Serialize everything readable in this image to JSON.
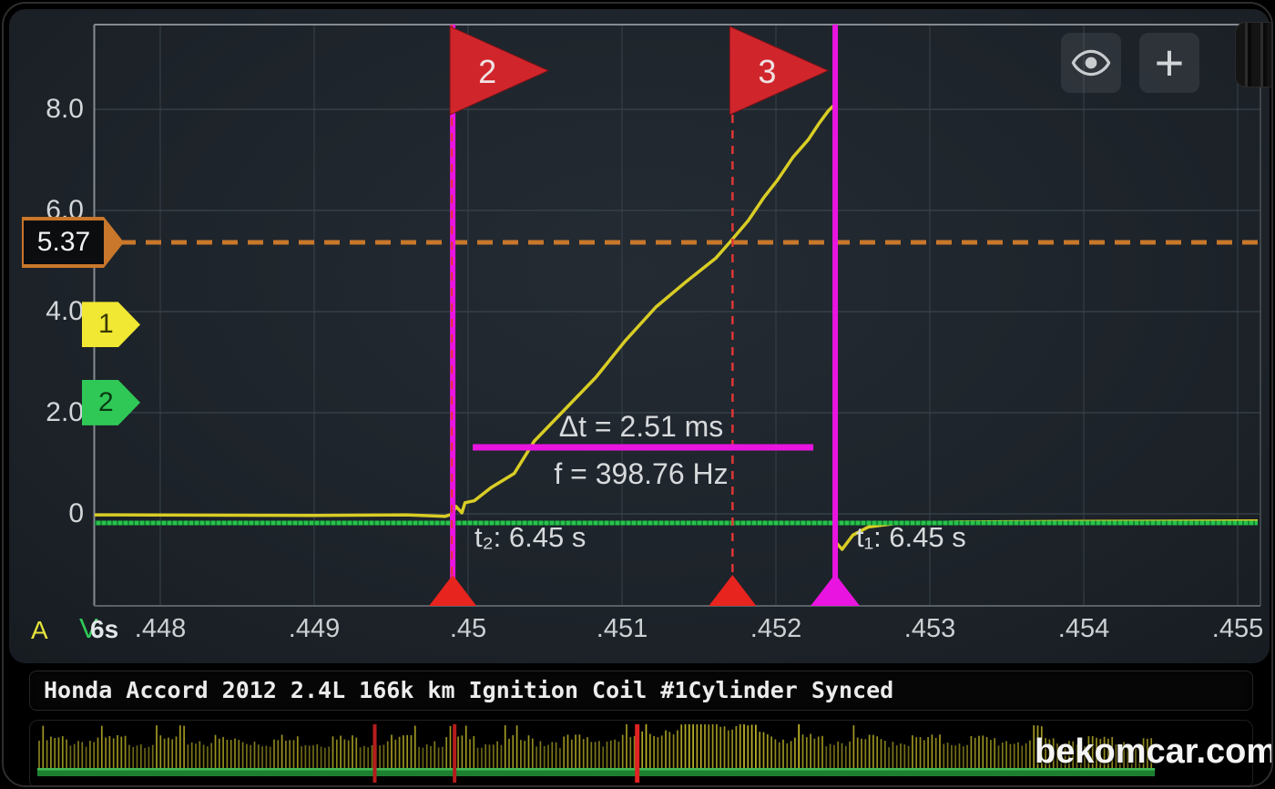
{
  "title_bar": {
    "text": "Honda Accord 2012 2.4L 166k km Ignition Coil #1Cylinder Synced"
  },
  "buttons": {
    "add_label": "+"
  },
  "axis_corner": {
    "channel": "A",
    "overlay": "V",
    "timebase": "6s"
  },
  "measurements": {
    "dt": "Δt = 2.51 ms",
    "f": "f = 398.76 Hz",
    "t2": "t₂: 6.45 s",
    "t1": "t₁: 6.45 s"
  },
  "ref_marker": {
    "label": "5.37",
    "value": 5.37
  },
  "channel_markers": [
    {
      "label": "1",
      "value": 3.74,
      "color": "#f0e832",
      "text_color": "#3a3a08"
    },
    {
      "label": "2",
      "value": 2.2,
      "color": "#2fc857",
      "text_color": "#083b14"
    }
  ],
  "overview": {
    "watermark": "bekomcar.com",
    "cursor_marks_pct": [
      27.9,
      34.5,
      49.6
    ],
    "data_extent_pct": 92.4
  },
  "colors": {
    "magenta": "#ea14e0",
    "flag_red": "#d1252c",
    "dash_red": "#e03636",
    "ref_orange": "#c8772b",
    "trace_yellow": "#d9cd25",
    "trace_green": "#27c24c"
  },
  "chart_data": {
    "type": "line",
    "x_unit": "s",
    "x_range": [
      0.447574,
      0.45513
    ],
    "y_range": [
      -1.77,
      9.55
    ],
    "grid": true,
    "x_ticks": {
      "labels": [
        ".448",
        ".449",
        ".45",
        ".451",
        ".452",
        ".453",
        ".454",
        ".455"
      ],
      "values": [
        0.448,
        0.449,
        0.45,
        0.451,
        0.452,
        0.453,
        0.454,
        0.455
      ]
    },
    "y_ticks": {
      "labels": [
        "8.0",
        "6.0",
        "4.0",
        "2.0",
        "0"
      ],
      "values": [
        8,
        6,
        4,
        2,
        0
      ]
    },
    "ref_line": {
      "value": 5.37,
      "color": "#c8772b"
    },
    "cursors": {
      "t2_s": 0.4499,
      "t1_s": 0.452385,
      "flag3_s": 0.451718,
      "dt_ms": 2.51,
      "f_hz": 398.76
    },
    "flags": [
      {
        "label": "2",
        "t_s": 0.4499
      },
      {
        "label": "3",
        "t_s": 0.451718
      }
    ],
    "series": [
      {
        "name": "channel-A-ignition-coil-current",
        "color": "#d9cd25",
        "width": 3.5,
        "points": [
          [
            0.447574,
            -0.02
          ],
          [
            0.449,
            -0.03
          ],
          [
            0.4496,
            -0.02
          ],
          [
            0.44985,
            -0.05
          ],
          [
            0.4499,
            0.0
          ],
          [
            0.44992,
            0.15
          ],
          [
            0.44996,
            0.02
          ],
          [
            0.44998,
            0.22
          ],
          [
            0.45004,
            0.26
          ],
          [
            0.45015,
            0.52
          ],
          [
            0.4503,
            0.8
          ],
          [
            0.45043,
            1.44
          ],
          [
            0.45063,
            2.07
          ],
          [
            0.45083,
            2.7
          ],
          [
            0.45102,
            3.42
          ],
          [
            0.45122,
            4.09
          ],
          [
            0.45142,
            4.6
          ],
          [
            0.45161,
            5.06
          ],
          [
            0.4517,
            5.37
          ],
          [
            0.45182,
            5.8
          ],
          [
            0.45192,
            6.25
          ],
          [
            0.45201,
            6.6
          ],
          [
            0.45211,
            7.05
          ],
          [
            0.45221,
            7.4
          ],
          [
            0.45228,
            7.72
          ],
          [
            0.45234,
            7.97
          ],
          [
            0.45237,
            8.06
          ],
          [
            0.45238,
            8.06
          ],
          [
            0.452385,
            -0.55
          ],
          [
            0.45243,
            -0.7
          ],
          [
            0.4525,
            -0.42
          ],
          [
            0.4526,
            -0.26
          ],
          [
            0.45278,
            -0.19
          ],
          [
            0.4532,
            -0.16
          ],
          [
            0.454,
            -0.15
          ],
          [
            0.45513,
            -0.14
          ]
        ]
      },
      {
        "name": "channel-2-sync",
        "color": "#27c24c",
        "width": 5,
        "points": [
          [
            0.447574,
            -0.18
          ],
          [
            0.45513,
            -0.18
          ]
        ]
      }
    ]
  }
}
